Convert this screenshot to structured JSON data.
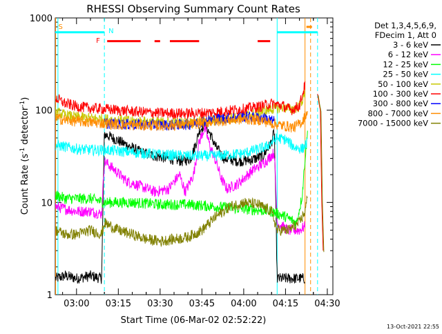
{
  "chart_data": {
    "type": "line",
    "title": "RHESSI Observing Summary Count Rates",
    "xlabel": "Start Time (06-Mar-02 02:52:22)",
    "ylabel": "Count Rate (s⁻¹ detector⁻¹)",
    "ylabel_main": "Count Rate (s",
    "ylabel_sup1": "-1",
    "ylabel_mid": " detector",
    "ylabel_sup2": "-1",
    "ylabel_end": ")",
    "y_scale": "log",
    "ylim": [
      1,
      1000
    ],
    "xlim": [
      "02:52:22",
      "04:32:00"
    ],
    "x_ticks": [
      "03:00",
      "03:15",
      "03:30",
      "03:45",
      "04:00",
      "04:15",
      "04:30"
    ],
    "y_ticks": [
      "1",
      "10",
      "100",
      "1000"
    ],
    "legend_header": [
      "Det 1,3,4,5,6,9,",
      "FDecim 1, Att 0"
    ],
    "legend_position": "right",
    "timestamp": "13-Oct-2021 22:55",
    "series": [
      {
        "name": "3 - 6 keV",
        "color": "#000000",
        "points": [
          [
            "02:52:30",
            1.5
          ],
          [
            "02:56",
            1.6
          ],
          [
            "03:00",
            1.5
          ],
          [
            "03:05",
            1.6
          ],
          [
            "03:09",
            1.5
          ],
          [
            "03:10",
            55
          ],
          [
            "03:13",
            50
          ],
          [
            "03:18",
            42
          ],
          [
            "03:23",
            35
          ],
          [
            "03:28",
            32
          ],
          [
            "03:33",
            30
          ],
          [
            "03:38",
            28
          ],
          [
            "03:41",
            30
          ],
          [
            "03:43",
            45
          ],
          [
            "03:44",
            60
          ],
          [
            "03:46",
            70
          ],
          [
            "03:48",
            55
          ],
          [
            "03:50",
            40
          ],
          [
            "03:53",
            30
          ],
          [
            "03:58",
            28
          ],
          [
            "04:03",
            29
          ],
          [
            "04:07",
            32
          ],
          [
            "04:10",
            45
          ],
          [
            "04:11",
            60
          ],
          [
            "04:12",
            1.5
          ],
          [
            "04:16",
            1.5
          ],
          [
            "04:20",
            1.5
          ],
          [
            "04:22",
            1.5
          ]
        ]
      },
      {
        "name": "6 - 12 keV",
        "color": "#ff00ff",
        "points": [
          [
            "02:52:30",
            9
          ],
          [
            "02:56",
            8.5
          ],
          [
            "03:00",
            8
          ],
          [
            "03:05",
            8
          ],
          [
            "03:09",
            7.5
          ],
          [
            "03:10",
            28
          ],
          [
            "03:14",
            22
          ],
          [
            "03:18",
            17
          ],
          [
            "03:23",
            15
          ],
          [
            "03:28",
            13
          ],
          [
            "03:33",
            14
          ],
          [
            "03:37",
            20
          ],
          [
            "03:39",
            13
          ],
          [
            "03:42",
            20
          ],
          [
            "03:44",
            45
          ],
          [
            "03:46",
            65
          ],
          [
            "03:48",
            40
          ],
          [
            "03:50",
            28
          ],
          [
            "03:52",
            18
          ],
          [
            "03:54",
            14
          ],
          [
            "03:58",
            16
          ],
          [
            "04:03",
            22
          ],
          [
            "04:08",
            28
          ],
          [
            "04:11",
            35
          ],
          [
            "04:12",
            6
          ],
          [
            "04:16",
            5
          ],
          [
            "04:20",
            5
          ],
          [
            "04:22",
            5.5
          ]
        ]
      },
      {
        "name": "12 - 25 keV",
        "color": "#00ff00",
        "points": [
          [
            "02:52:30",
            12
          ],
          [
            "02:56",
            11
          ],
          [
            "03:00",
            11
          ],
          [
            "03:05",
            11
          ],
          [
            "03:10",
            10
          ],
          [
            "03:15",
            10
          ],
          [
            "03:20",
            10
          ],
          [
            "03:30",
            9.5
          ],
          [
            "03:40",
            9.5
          ],
          [
            "03:50",
            9
          ],
          [
            "04:00",
            8.5
          ],
          [
            "04:10",
            8
          ],
          [
            "04:15",
            7
          ],
          [
            "04:19",
            6
          ],
          [
            "04:21",
            12
          ],
          [
            "04:22",
            30
          ],
          [
            "04:23",
            60
          ]
        ]
      },
      {
        "name": "25 - 50 keV",
        "color": "#00ffff",
        "points": [
          [
            "02:52:30",
            42
          ],
          [
            "02:56",
            40
          ],
          [
            "03:00",
            38
          ],
          [
            "03:05",
            37
          ],
          [
            "03:10",
            37
          ],
          [
            "03:15",
            36
          ],
          [
            "03:20",
            35
          ],
          [
            "03:30",
            33
          ],
          [
            "03:40",
            32
          ],
          [
            "03:50",
            32
          ],
          [
            "04:00",
            34
          ],
          [
            "04:08",
            40
          ],
          [
            "04:12",
            50
          ],
          [
            "04:15",
            48
          ],
          [
            "04:18",
            40
          ],
          [
            "04:21",
            38
          ],
          [
            "04:23",
            45
          ]
        ]
      },
      {
        "name": "50 - 100 keV",
        "color": "#c8c800",
        "points": [
          [
            "02:52:30",
            95
          ],
          [
            "02:56",
            88
          ],
          [
            "03:00",
            84
          ],
          [
            "03:05",
            82
          ],
          [
            "03:10",
            80
          ],
          [
            "03:15",
            78
          ],
          [
            "03:20",
            76
          ],
          [
            "03:30",
            74
          ],
          [
            "03:40",
            73
          ],
          [
            "03:50",
            78
          ],
          [
            "04:00",
            85
          ],
          [
            "04:06",
            95
          ],
          [
            "04:10",
            103
          ],
          [
            "04:14",
            108
          ],
          [
            "04:17",
            102
          ],
          [
            "04:20",
            110
          ],
          [
            "04:22",
            150
          ]
        ]
      },
      {
        "name": "100 - 300 keV",
        "color": "#ff0000",
        "points": [
          [
            "02:52:30",
            135
          ],
          [
            "02:56",
            118
          ],
          [
            "03:00",
            110
          ],
          [
            "03:05",
            105
          ],
          [
            "03:10",
            103
          ],
          [
            "03:15",
            100
          ],
          [
            "03:20",
            97
          ],
          [
            "03:30",
            93
          ],
          [
            "03:40",
            92
          ],
          [
            "03:50",
            95
          ],
          [
            "04:00",
            103
          ],
          [
            "04:06",
            110
          ],
          [
            "04:10",
            118
          ],
          [
            "04:14",
            112
          ],
          [
            "04:17",
            100
          ],
          [
            "04:20",
            112
          ],
          [
            "04:22",
            190
          ]
        ]
      },
      {
        "name": "300 - 800 keV",
        "color": "#0000ff",
        "points": [
          [
            "03:10",
            72
          ],
          [
            "03:20",
            70
          ],
          [
            "03:30",
            69
          ],
          [
            "03:40",
            70
          ],
          [
            "03:50",
            80
          ],
          [
            "04:00",
            85
          ],
          [
            "04:08",
            82
          ],
          [
            "04:11",
            75
          ]
        ]
      },
      {
        "name": "800 - 7000 keV",
        "color": "#ff8c00",
        "points": [
          [
            "02:52:30",
            82
          ],
          [
            "02:56",
            78
          ],
          [
            "03:00",
            76
          ],
          [
            "03:05",
            74
          ],
          [
            "03:10",
            72
          ],
          [
            "03:15",
            70
          ],
          [
            "03:20",
            69
          ],
          [
            "03:30",
            68
          ],
          [
            "03:40",
            70
          ],
          [
            "03:50",
            76
          ],
          [
            "04:00",
            80
          ],
          [
            "04:06",
            78
          ],
          [
            "04:10",
            72
          ],
          [
            "04:14",
            68
          ],
          [
            "04:18",
            65
          ],
          [
            "04:21",
            75
          ],
          [
            "04:23",
            100
          ]
        ]
      },
      {
        "name": "7000 - 15000 keV",
        "color": "#808000",
        "points": [
          [
            "02:52:30",
            5
          ],
          [
            "02:56",
            4.5
          ],
          [
            "03:00",
            4.5
          ],
          [
            "03:05",
            5
          ],
          [
            "03:09",
            4.5
          ],
          [
            "03:10",
            6
          ],
          [
            "03:15",
            5
          ],
          [
            "03:20",
            4.5
          ],
          [
            "03:25",
            4
          ],
          [
            "03:30",
            3.8
          ],
          [
            "03:40",
            4.2
          ],
          [
            "03:45",
            5
          ],
          [
            "03:50",
            7
          ],
          [
            "03:55",
            9
          ],
          [
            "04:00",
            10
          ],
          [
            "04:05",
            9.5
          ],
          [
            "04:10",
            8
          ],
          [
            "04:12",
            5
          ],
          [
            "04:16",
            5
          ],
          [
            "04:20",
            6
          ],
          [
            "04:22",
            8
          ],
          [
            "04:23",
            12
          ]
        ]
      }
    ],
    "late_segment": {
      "line_at": "04:25:30",
      "points": [
        [
          "04:26:30",
          150
        ],
        [
          "04:27",
          120
        ],
        [
          "04:27:30",
          100
        ],
        [
          "04:28",
          10
        ],
        [
          "04:28:30",
          3
        ]
      ]
    },
    "flags": [
      {
        "label": "S",
        "color": "#ff8c00",
        "at": "02:52:30"
      },
      {
        "label": "N",
        "color": "#00ffff",
        "at": "03:10:00"
      },
      {
        "label": "F",
        "color": "#ff0000",
        "at": "03:10:00"
      }
    ],
    "flag_bars": {
      "night": {
        "color": "#00ffff",
        "value": 700,
        "ranges": [
          [
            "02:52:22",
            "03:10:00"
          ],
          [
            "04:12:00",
            "04:26:30"
          ]
        ]
      },
      "saa": {
        "color": "#ff8c00",
        "value": 800,
        "ranges": [
          [
            "04:22:30",
            "04:24:30"
          ]
        ]
      },
      "flare": {
        "color": "#ff0000",
        "value": 560,
        "ranges": [
          [
            "03:11:00",
            "03:23:00"
          ],
          [
            "03:28:00",
            "03:30:00"
          ],
          [
            "03:33:30",
            "03:44:00"
          ],
          [
            "04:05:00",
            "04:09:30"
          ]
        ]
      }
    },
    "vertical_lines": [
      {
        "at": "02:52:30",
        "color": "#ff8c00",
        "style": "solid"
      },
      {
        "at": "02:53:20",
        "color": "#00ffff",
        "style": "solid"
      },
      {
        "at": "03:10:00",
        "color": "#00ffff",
        "style": "dashed"
      },
      {
        "at": "04:12:00",
        "color": "#00ffff",
        "style": "solid"
      },
      {
        "at": "04:22:00",
        "color": "#ff8c00",
        "style": "solid"
      },
      {
        "at": "04:24:00",
        "color": "#ff8c00",
        "style": "dashed"
      },
      {
        "at": "04:26:30",
        "color": "#00ffff",
        "style": "dashed"
      }
    ]
  }
}
